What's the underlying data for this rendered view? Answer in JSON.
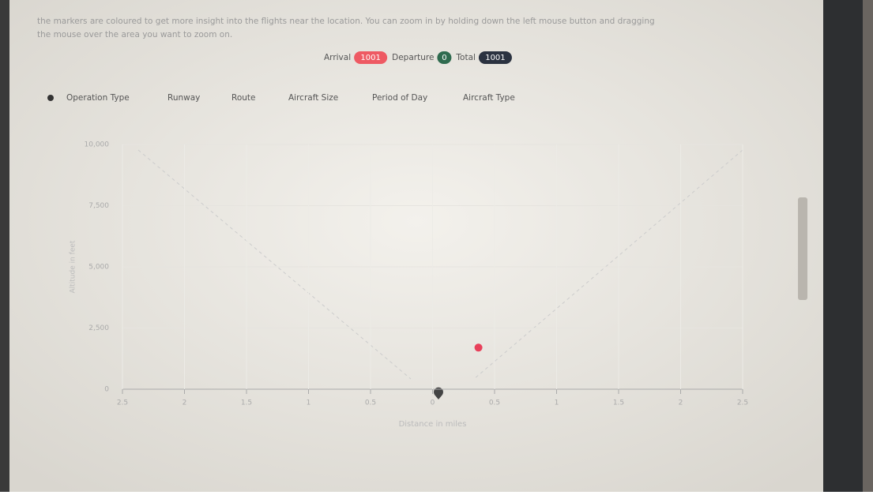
{
  "intro": [
    "the markers are coloured to get more insight into the flights near the location. You can zoom in by holding down the left mouse button and dragging",
    "the mouse over the area you want to zoom on."
  ],
  "counts": [
    {
      "label": "Arrival",
      "value": "1001",
      "color": "#ee5a63"
    },
    {
      "label": "Departure",
      "value": "0",
      "color": "#2f6b4f"
    },
    {
      "label": "Total",
      "value": "1001",
      "color": "#2b3240"
    }
  ],
  "tabs": [
    "Operation Type",
    "Runway",
    "Route",
    "Aircraft Size",
    "Period of Day",
    "Aircraft Type"
  ],
  "chart_data": {
    "type": "scatter",
    "y_label": "Altitude in feet",
    "x_label": "Distance in miles",
    "x": [
      0.37
    ],
    "values": [
      1700
    ],
    "color": "#e8405a",
    "xlim": [
      -2.5,
      2.5
    ],
    "xticks": [
      {
        "value": -2.5,
        "label": "2.5"
      },
      {
        "value": -2,
        "label": "2"
      },
      {
        "value": -1.5,
        "label": "1.5"
      },
      {
        "value": -1,
        "label": "1"
      },
      {
        "value": -0.5,
        "label": "0.5"
      },
      0,
      0.5,
      1,
      1.5,
      2,
      2.5
    ],
    "ylim": [
      0,
      10000
    ],
    "yticks": [
      0,
      {
        "value": 2500,
        "label": "2,500"
      },
      {
        "value": 5000,
        "label": "5,000"
      },
      {
        "value": 7500,
        "label": "7,500"
      },
      {
        "value": 10000,
        "label": "10,000"
      }
    ],
    "grid": true
  }
}
